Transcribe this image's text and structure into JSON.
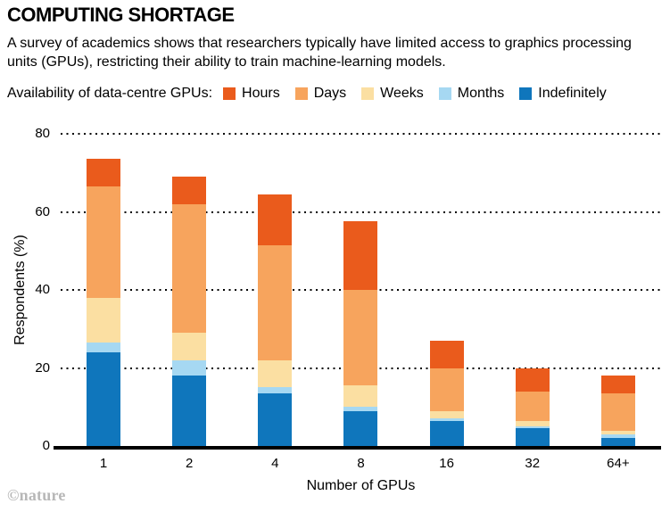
{
  "header": {
    "title": "COMPUTING SHORTAGE",
    "subtitle": "A survey of academics shows that researchers typically have limited access to graphics processing units (GPUs), restricting their ability to train machine-learning models."
  },
  "legend": {
    "label": "Availability of data-centre GPUs:",
    "position": "top",
    "items": [
      {
        "label": "Hours",
        "color": "#EA5B1C"
      },
      {
        "label": "Days",
        "color": "#F7A45D"
      },
      {
        "label": "Weeks",
        "color": "#FBDFA2"
      },
      {
        "label": "Months",
        "color": "#A6D8F2"
      },
      {
        "label": "Indefinitely",
        "color": "#0F76BC"
      }
    ]
  },
  "chart_data": {
    "type": "bar",
    "stacked": true,
    "title": "COMPUTING SHORTAGE",
    "categories": [
      "1",
      "2",
      "4",
      "8",
      "16",
      "32",
      "64+"
    ],
    "series": [
      {
        "name": "Indefinitely",
        "color": "#0F76BC",
        "values": [
          24,
          18,
          13.5,
          9,
          6.5,
          4.5,
          2
        ]
      },
      {
        "name": "Months",
        "color": "#A6D8F2",
        "values": [
          2.5,
          4,
          1.5,
          1,
          0.5,
          0.5,
          1
        ]
      },
      {
        "name": "Weeks",
        "color": "#FBDFA2",
        "values": [
          11.5,
          7,
          7,
          5.5,
          2,
          1.5,
          1
        ]
      },
      {
        "name": "Days",
        "color": "#F7A45D",
        "values": [
          28.5,
          33,
          29.5,
          24.5,
          11,
          7.5,
          9.5
        ]
      },
      {
        "name": "Hours",
        "color": "#EA5B1C",
        "values": [
          7,
          7,
          13,
          17.5,
          7,
          6,
          4.5
        ]
      }
    ],
    "xlabel": "Number of GPUs",
    "ylabel": "Respondents (%)",
    "ylim": [
      0,
      80
    ],
    "yticks": [
      0,
      20,
      40,
      60,
      80
    ],
    "grid": "dotted horizontal gridlines at y ticks"
  },
  "footer": {
    "credit": "©nature"
  }
}
